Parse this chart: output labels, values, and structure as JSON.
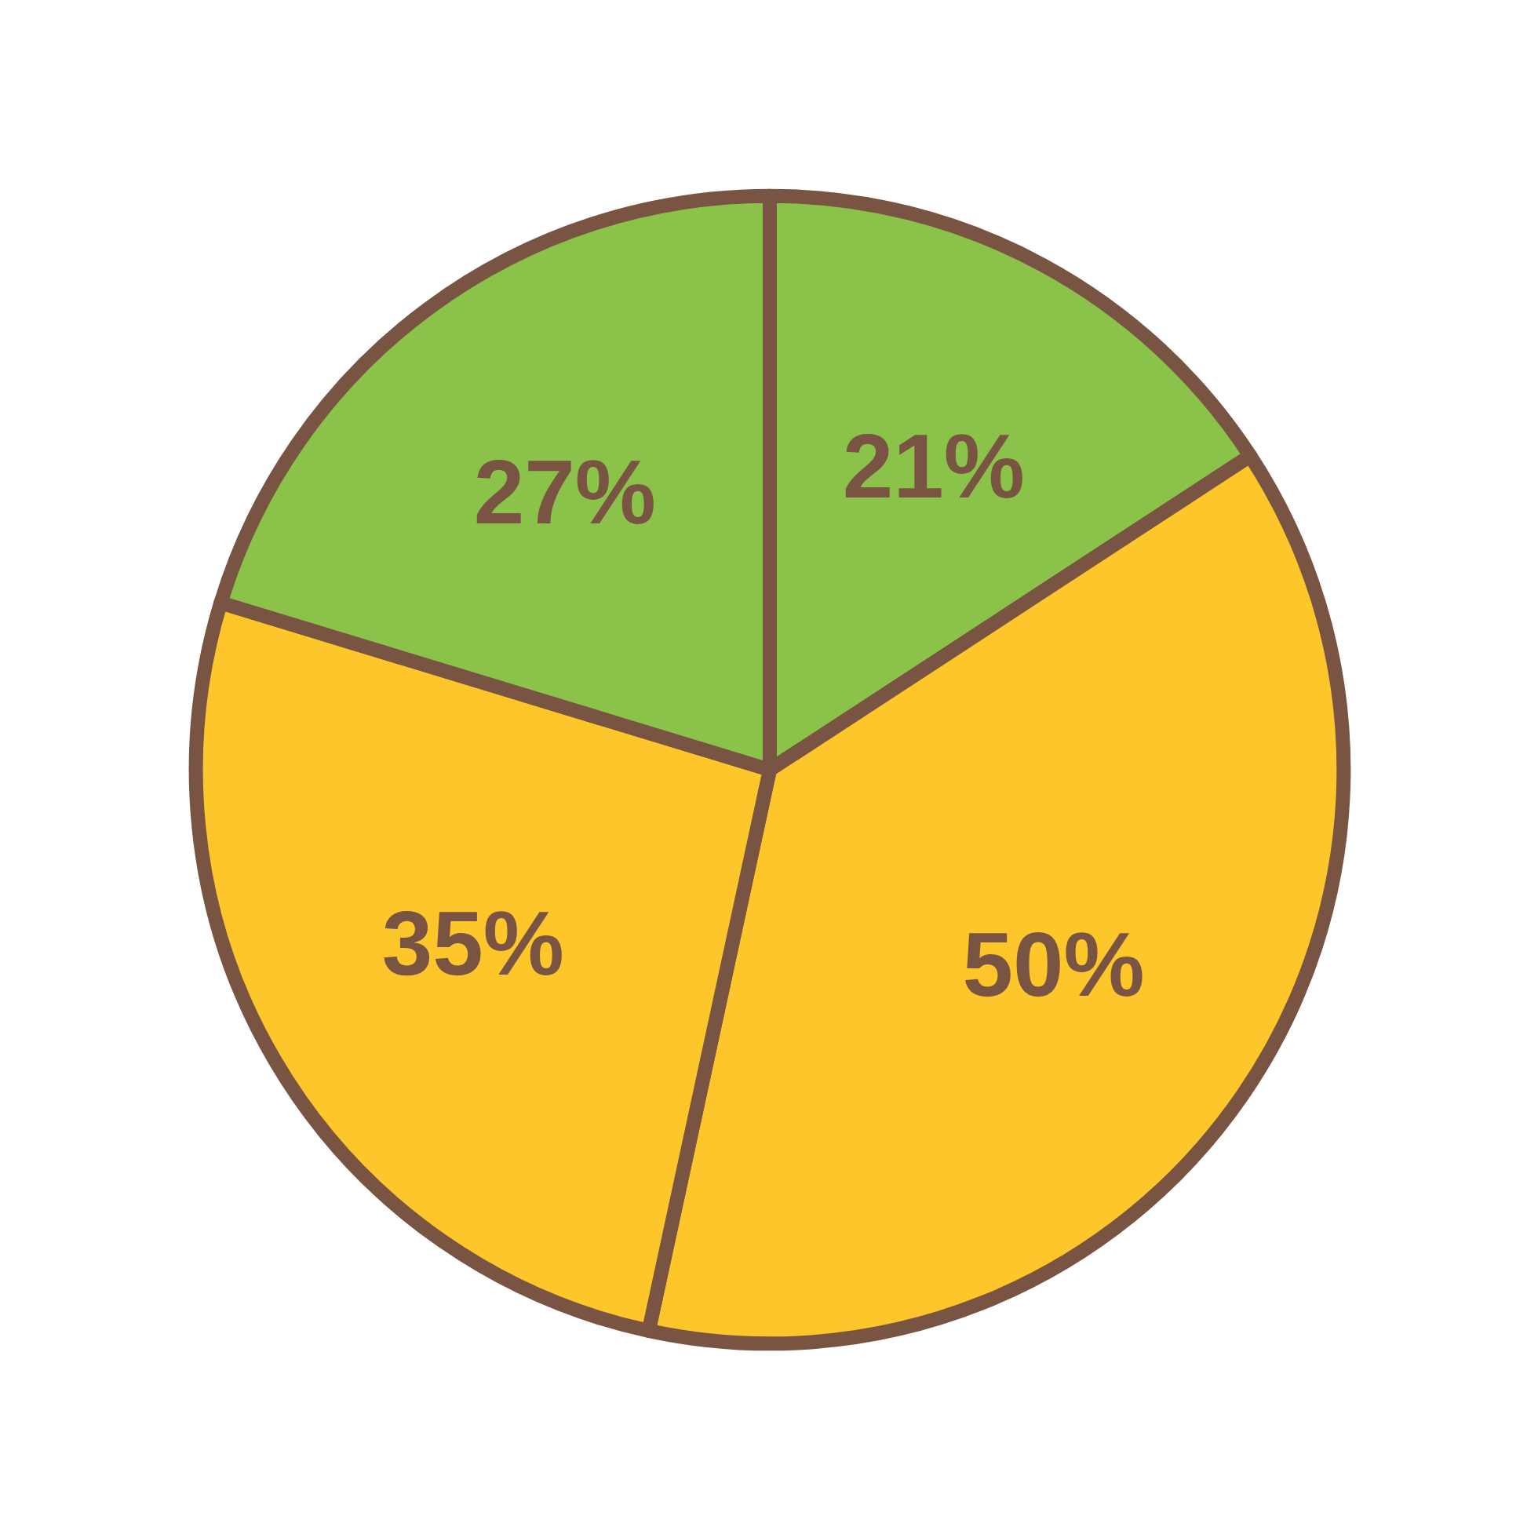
{
  "chart_data": {
    "type": "pie",
    "categories": [
      null,
      null,
      null,
      null
    ],
    "values": [
      21,
      50,
      35,
      27
    ],
    "colors": [
      "#8bc34a",
      "#fdc62a",
      "#fdc62a",
      "#8bc34a"
    ],
    "value_labels": [
      "21%",
      "50%",
      "35%",
      "27%"
    ]
  }
}
